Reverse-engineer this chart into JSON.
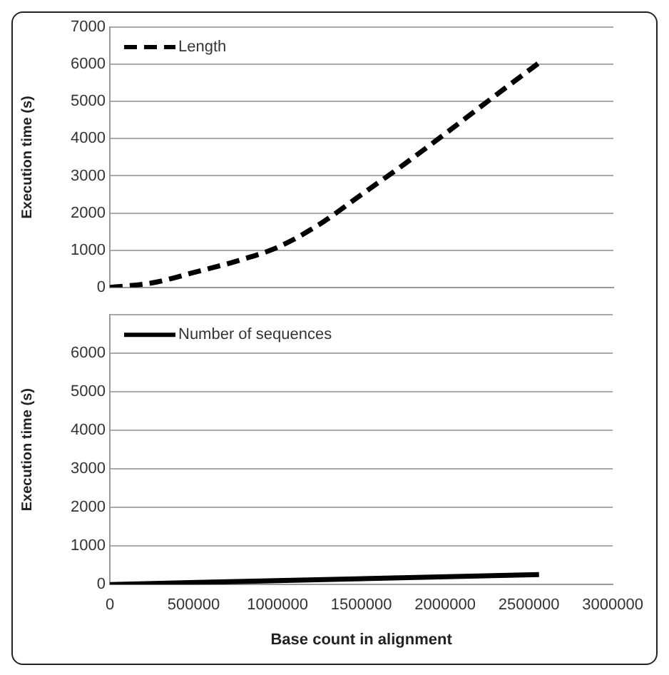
{
  "chart_data": [
    {
      "type": "line",
      "ylabel": "Execution time (s)",
      "x": [
        0,
        250000,
        500000,
        750000,
        1000000,
        1250000,
        1500000,
        1750000,
        2000000,
        2250000,
        2560000
      ],
      "series": [
        {
          "name": "Length",
          "color": "#000000",
          "line_style": "dashed",
          "values": [
            0,
            120,
            400,
            700,
            1080,
            1700,
            2500,
            3300,
            4140,
            5000,
            6050
          ]
        }
      ],
      "xlim": [
        0,
        3000000
      ],
      "ylim": [
        0,
        7000
      ],
      "yticks": [
        0,
        1000,
        2000,
        3000,
        4000,
        5000,
        6000,
        7000
      ],
      "grid": "y",
      "legend": "top left",
      "marker": "none",
      "tick_labels": "y"
    },
    {
      "type": "line",
      "ylabel": "Execution time (s)",
      "xlabel": "Base count in alignment",
      "x": [
        0,
        2560000
      ],
      "series": [
        {
          "name": "Number of sequences",
          "color": "#000000",
          "line_style": "solid",
          "values": [
            0,
            260
          ]
        }
      ],
      "xlim": [
        0,
        3000000
      ],
      "xticks": [
        0,
        500000,
        1000000,
        1500000,
        2000000,
        2500000,
        3000000
      ],
      "ylim": [
        0,
        7000
      ],
      "yticks": [
        0,
        1000,
        2000,
        3000,
        4000,
        5000,
        6000,
        {
          "value": 7000,
          "label": null
        }
      ],
      "grid": "y",
      "legend": "top left",
      "marker": "none"
    }
  ]
}
